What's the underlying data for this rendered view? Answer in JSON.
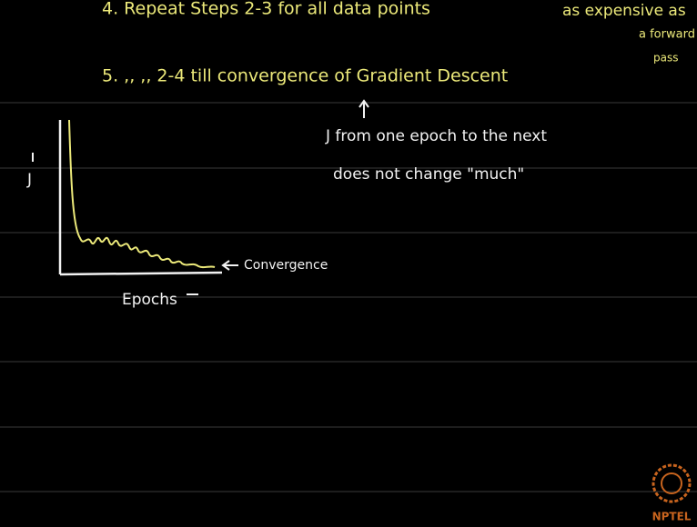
{
  "notes": {
    "step4": "4. Repeat Steps 2-3 for all data points",
    "side_note": [
      "as expensive as",
      "a forward",
      "pass"
    ],
    "step5": "5.  ,,   ,,   2-4 till convergence of Gradient Descent",
    "remark": [
      "J from one epoch to the next",
      "does not change \"much\""
    ]
  },
  "sketch": {
    "y_label": "J",
    "x_label": "Epochs",
    "annotation": "Convergence"
  },
  "logo": "NPTEL"
}
